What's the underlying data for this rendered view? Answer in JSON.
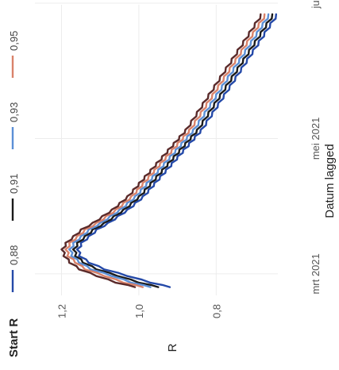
{
  "chart_data": {
    "type": "line",
    "orientation": "rotated-90-clockwise",
    "xlabel": "Datum lagged",
    "ylabel": "R",
    "ylim": [
      0.62,
      1.24
    ],
    "yticks": [
      {
        "value": 1.2,
        "label": "1,2"
      },
      {
        "value": 1.0,
        "label": "1,0"
      },
      {
        "value": 0.8,
        "label": "0,8"
      }
    ],
    "xlim": [
      "2021-02-15",
      "2021-07-01"
    ],
    "xticks": [
      {
        "value": "2021-03-01",
        "label": "mrt 2021"
      },
      {
        "value": "2021-05-01",
        "label": "mei 2021"
      },
      {
        "value": "2021-07-01",
        "label": "jul"
      }
    ],
    "grid": true,
    "legend": {
      "title": "Start R",
      "position": "top"
    },
    "series": [
      {
        "name": "0,88",
        "color": "#2449a8",
        "x": [
          "2021-02-23",
          "2021-02-25",
          "2021-02-28",
          "2021-03-03",
          "2021-03-06",
          "2021-03-09",
          "2021-03-12",
          "2021-03-15",
          "2021-03-18",
          "2021-03-21",
          "2021-03-24",
          "2021-03-27",
          "2021-03-30",
          "2021-04-02",
          "2021-04-05",
          "2021-04-08",
          "2021-04-11",
          "2021-04-14",
          "2021-04-17",
          "2021-04-20",
          "2021-04-23",
          "2021-04-26",
          "2021-04-29",
          "2021-05-02",
          "2021-05-05",
          "2021-05-09",
          "2021-05-13",
          "2021-05-17",
          "2021-05-21",
          "2021-05-25",
          "2021-05-29",
          "2021-06-02",
          "2021-06-06",
          "2021-06-10",
          "2021-06-14",
          "2021-06-18",
          "2021-06-22",
          "2021-06-26"
        ],
        "values": [
          0.92,
          0.97,
          1.03,
          1.09,
          1.13,
          1.155,
          1.16,
          1.15,
          1.13,
          1.11,
          1.08,
          1.055,
          1.03,
          1.01,
          0.99,
          0.975,
          0.96,
          0.945,
          0.93,
          0.915,
          0.9,
          0.885,
          0.87,
          0.855,
          0.84,
          0.825,
          0.81,
          0.795,
          0.78,
          0.765,
          0.75,
          0.735,
          0.72,
          0.705,
          0.69,
          0.675,
          0.66,
          0.645
        ]
      },
      {
        "name": "0,91",
        "color": "#1a1a1a",
        "x": [
          "2021-02-23",
          "2021-02-25",
          "2021-02-28",
          "2021-03-03",
          "2021-03-06",
          "2021-03-09",
          "2021-03-12",
          "2021-03-15",
          "2021-03-18",
          "2021-03-21",
          "2021-03-24",
          "2021-03-27",
          "2021-03-30",
          "2021-04-02",
          "2021-04-05",
          "2021-04-08",
          "2021-04-11",
          "2021-04-14",
          "2021-04-17",
          "2021-04-20",
          "2021-04-23",
          "2021-04-26",
          "2021-04-29",
          "2021-05-02",
          "2021-05-05",
          "2021-05-09",
          "2021-05-13",
          "2021-05-17",
          "2021-05-21",
          "2021-05-25",
          "2021-05-29",
          "2021-06-02",
          "2021-06-06",
          "2021-06-10",
          "2021-06-14",
          "2021-06-18",
          "2021-06-22",
          "2021-06-26"
        ],
        "values": [
          0.95,
          1.0,
          1.055,
          1.11,
          1.145,
          1.165,
          1.17,
          1.16,
          1.14,
          1.12,
          1.09,
          1.065,
          1.04,
          1.02,
          1.0,
          0.985,
          0.97,
          0.955,
          0.94,
          0.925,
          0.91,
          0.895,
          0.88,
          0.865,
          0.85,
          0.835,
          0.82,
          0.805,
          0.79,
          0.775,
          0.76,
          0.745,
          0.73,
          0.715,
          0.7,
          0.685,
          0.67,
          0.655
        ]
      },
      {
        "name": "0,93",
        "color": "#5b8fd6",
        "x": [
          "2021-02-23",
          "2021-02-25",
          "2021-02-28",
          "2021-03-03",
          "2021-03-06",
          "2021-03-09",
          "2021-03-12",
          "2021-03-15",
          "2021-03-18",
          "2021-03-21",
          "2021-03-24",
          "2021-03-27",
          "2021-03-30",
          "2021-04-02",
          "2021-04-05",
          "2021-04-08",
          "2021-04-11",
          "2021-04-14",
          "2021-04-17",
          "2021-04-20",
          "2021-04-23",
          "2021-04-26",
          "2021-04-29",
          "2021-05-02",
          "2021-05-05",
          "2021-05-09",
          "2021-05-13",
          "2021-05-17",
          "2021-05-21",
          "2021-05-25",
          "2021-05-29",
          "2021-06-02",
          "2021-06-06",
          "2021-06-10",
          "2021-06-14",
          "2021-06-18",
          "2021-06-22",
          "2021-06-26"
        ],
        "values": [
          0.97,
          1.02,
          1.07,
          1.125,
          1.155,
          1.175,
          1.18,
          1.17,
          1.15,
          1.13,
          1.1,
          1.075,
          1.05,
          1.03,
          1.01,
          0.995,
          0.98,
          0.965,
          0.95,
          0.935,
          0.92,
          0.905,
          0.89,
          0.875,
          0.86,
          0.845,
          0.83,
          0.815,
          0.8,
          0.785,
          0.77,
          0.755,
          0.74,
          0.725,
          0.71,
          0.695,
          0.68,
          0.665
        ]
      },
      {
        "name": "0,95",
        "color": "#d9826a",
        "x": [
          "2021-02-23",
          "2021-02-25",
          "2021-02-28",
          "2021-03-03",
          "2021-03-06",
          "2021-03-09",
          "2021-03-12",
          "2021-03-15",
          "2021-03-18",
          "2021-03-21",
          "2021-03-24",
          "2021-03-27",
          "2021-03-30",
          "2021-04-02",
          "2021-04-05",
          "2021-04-08",
          "2021-04-11",
          "2021-04-14",
          "2021-04-17",
          "2021-04-20",
          "2021-04-23",
          "2021-04-26",
          "2021-04-29",
          "2021-05-02",
          "2021-05-05",
          "2021-05-09",
          "2021-05-13",
          "2021-05-17",
          "2021-05-21",
          "2021-05-25",
          "2021-05-29",
          "2021-06-02",
          "2021-06-06",
          "2021-06-10",
          "2021-06-14",
          "2021-06-18",
          "2021-06-22",
          "2021-06-26"
        ],
        "values": [
          0.99,
          1.04,
          1.09,
          1.14,
          1.165,
          1.185,
          1.19,
          1.18,
          1.16,
          1.14,
          1.11,
          1.085,
          1.06,
          1.04,
          1.02,
          1.005,
          0.99,
          0.975,
          0.96,
          0.945,
          0.93,
          0.915,
          0.9,
          0.885,
          0.87,
          0.855,
          0.84,
          0.825,
          0.81,
          0.795,
          0.78,
          0.765,
          0.75,
          0.735,
          0.72,
          0.705,
          0.69,
          0.675
        ]
      },
      {
        "name": "",
        "color": "#5a2a2a",
        "x": [
          "2021-02-23",
          "2021-02-25",
          "2021-02-28",
          "2021-03-03",
          "2021-03-06",
          "2021-03-09",
          "2021-03-12",
          "2021-03-15",
          "2021-03-18",
          "2021-03-21",
          "2021-03-24",
          "2021-03-27",
          "2021-03-30",
          "2021-04-02",
          "2021-04-05",
          "2021-04-08",
          "2021-04-11",
          "2021-04-14",
          "2021-04-17",
          "2021-04-20",
          "2021-04-23",
          "2021-04-26",
          "2021-04-29",
          "2021-05-02",
          "2021-05-05",
          "2021-05-09",
          "2021-05-13",
          "2021-05-17",
          "2021-05-21",
          "2021-05-25",
          "2021-05-29",
          "2021-06-02",
          "2021-06-06",
          "2021-06-10",
          "2021-06-14",
          "2021-06-18",
          "2021-06-22",
          "2021-06-26"
        ],
        "values": [
          1.01,
          1.06,
          1.11,
          1.155,
          1.18,
          1.195,
          1.2,
          1.19,
          1.17,
          1.15,
          1.12,
          1.095,
          1.07,
          1.05,
          1.03,
          1.015,
          1.0,
          0.985,
          0.97,
          0.955,
          0.94,
          0.925,
          0.91,
          0.895,
          0.88,
          0.865,
          0.85,
          0.835,
          0.82,
          0.805,
          0.79,
          0.775,
          0.76,
          0.745,
          0.73,
          0.715,
          0.7,
          0.685
        ]
      }
    ]
  }
}
